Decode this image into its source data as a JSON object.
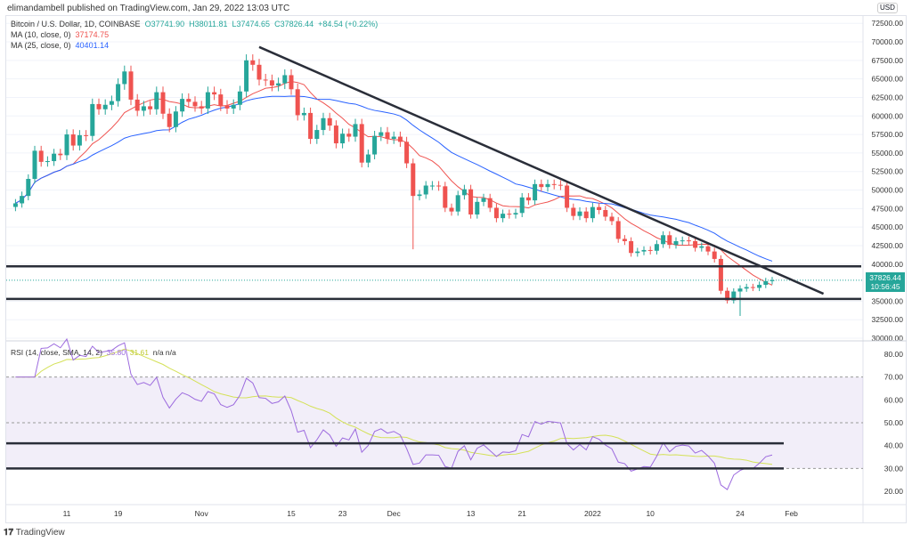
{
  "header": {
    "published": "elimandambell published on TradingView.com, Jan 29, 2022 13:03 UTC"
  },
  "legend": {
    "symbol": "Bitcoin / U.S. Dollar, 1D, COINBASE",
    "open": "O37741.90",
    "high": "H38011.81",
    "low": "L37474.65",
    "close": "C37826.44",
    "change": "+84.54 (+0.22%)",
    "ma10_label": "MA (10, close, 0)",
    "ma10_value": "37174.75",
    "ma25_label": "MA (25, close, 0)",
    "ma25_value": "40401.14",
    "rsi_label": "RSI (14, close, SMA, 14, 2)",
    "rsi_value": "35.80",
    "rsi_sma_value": "31.61",
    "rsi_na": "n/a  n/a"
  },
  "price_axis": {
    "currency": "USD",
    "ticks": [
      "72500.00",
      "70000.00",
      "67500.00",
      "65000.00",
      "62500.00",
      "60000.00",
      "57500.00",
      "55000.00",
      "52500.00",
      "50000.00",
      "47500.00",
      "45000.00",
      "42500.00",
      "40000.00",
      "35000.00",
      "32500.00",
      "30000.00"
    ],
    "last_price": "37826.44",
    "countdown": "10:56:45"
  },
  "rsi_axis": {
    "ticks": [
      "80.00",
      "70.00",
      "60.00",
      "50.00",
      "40.00",
      "30.00",
      "20.00"
    ]
  },
  "time_axis": {
    "labels": [
      "11",
      "19",
      "Nov",
      "15",
      "23",
      "Dec",
      "13",
      "21",
      "2022",
      "10",
      "24",
      "Feb"
    ]
  },
  "footer": {
    "logo": "TradingView"
  },
  "colors": {
    "up": "#26a69a",
    "down": "#ef5350",
    "ma10": "#ef5350",
    "ma25": "#2962ff",
    "rsi": "#9c6ade",
    "rsi_sma": "#d4e157",
    "band": "#7e57c2"
  },
  "chart_data": {
    "type": "candlestick",
    "first_date": "2021-10-03",
    "last_date": "2022-01-29",
    "closes": [
      48200,
      49200,
      51500,
      55300,
      53800,
      53900,
      54900,
      54700,
      57500,
      56000,
      57400,
      57300,
      61600,
      60900,
      61500,
      62000,
      64300,
      66000,
      62200,
      60700,
      61300,
      60900,
      63200,
      60300,
      58500,
      60600,
      62300,
      61900,
      61300,
      61000,
      63200,
      62900,
      61400,
      61000,
      61500,
      63300,
      67500,
      66900,
      64900,
      64800,
      64100,
      64400,
      65500,
      63600,
      60100,
      60400,
      56900,
      58100,
      59700,
      58700,
      56300,
      57600,
      57200,
      58900,
      53700,
      54800,
      57300,
      57800,
      56900,
      57200,
      56500,
      53600,
      49200,
      49400,
      50600,
      50600,
      50500,
      47600,
      47100,
      49300,
      50100,
      46700,
      48400,
      48900,
      47600,
      46200,
      46800,
      46700,
      46900,
      49000,
      48600,
      50800,
      50400,
      50800,
      50700,
      50600,
      47600,
      46500,
      47100,
      46200,
      47700,
      47300,
      46400,
      45800,
      43400,
      43100,
      41500,
      41700,
      41900,
      41800,
      42700,
      43900,
      42600,
      43100,
      43200,
      43100,
      42200,
      42400,
      41700,
      40700,
      36400,
      35100,
      36300,
      36700,
      36900,
      36800,
      37200,
      37700,
      37826
    ],
    "wick_extremes": [
      {
        "date": "2021-12-04",
        "low": 42000
      },
      {
        "date": "2022-01-24",
        "low": 33000
      }
    ],
    "trendlines": [
      {
        "from": [
          "2021-11-10",
          69300
        ],
        "to": [
          "2022-02-06",
          36000
        ]
      }
    ],
    "horizontal_levels": [
      39700,
      35300
    ],
    "rsi_levels": [
      41,
      30
    ],
    "rsi_bands": [
      70,
      50,
      30
    ]
  }
}
